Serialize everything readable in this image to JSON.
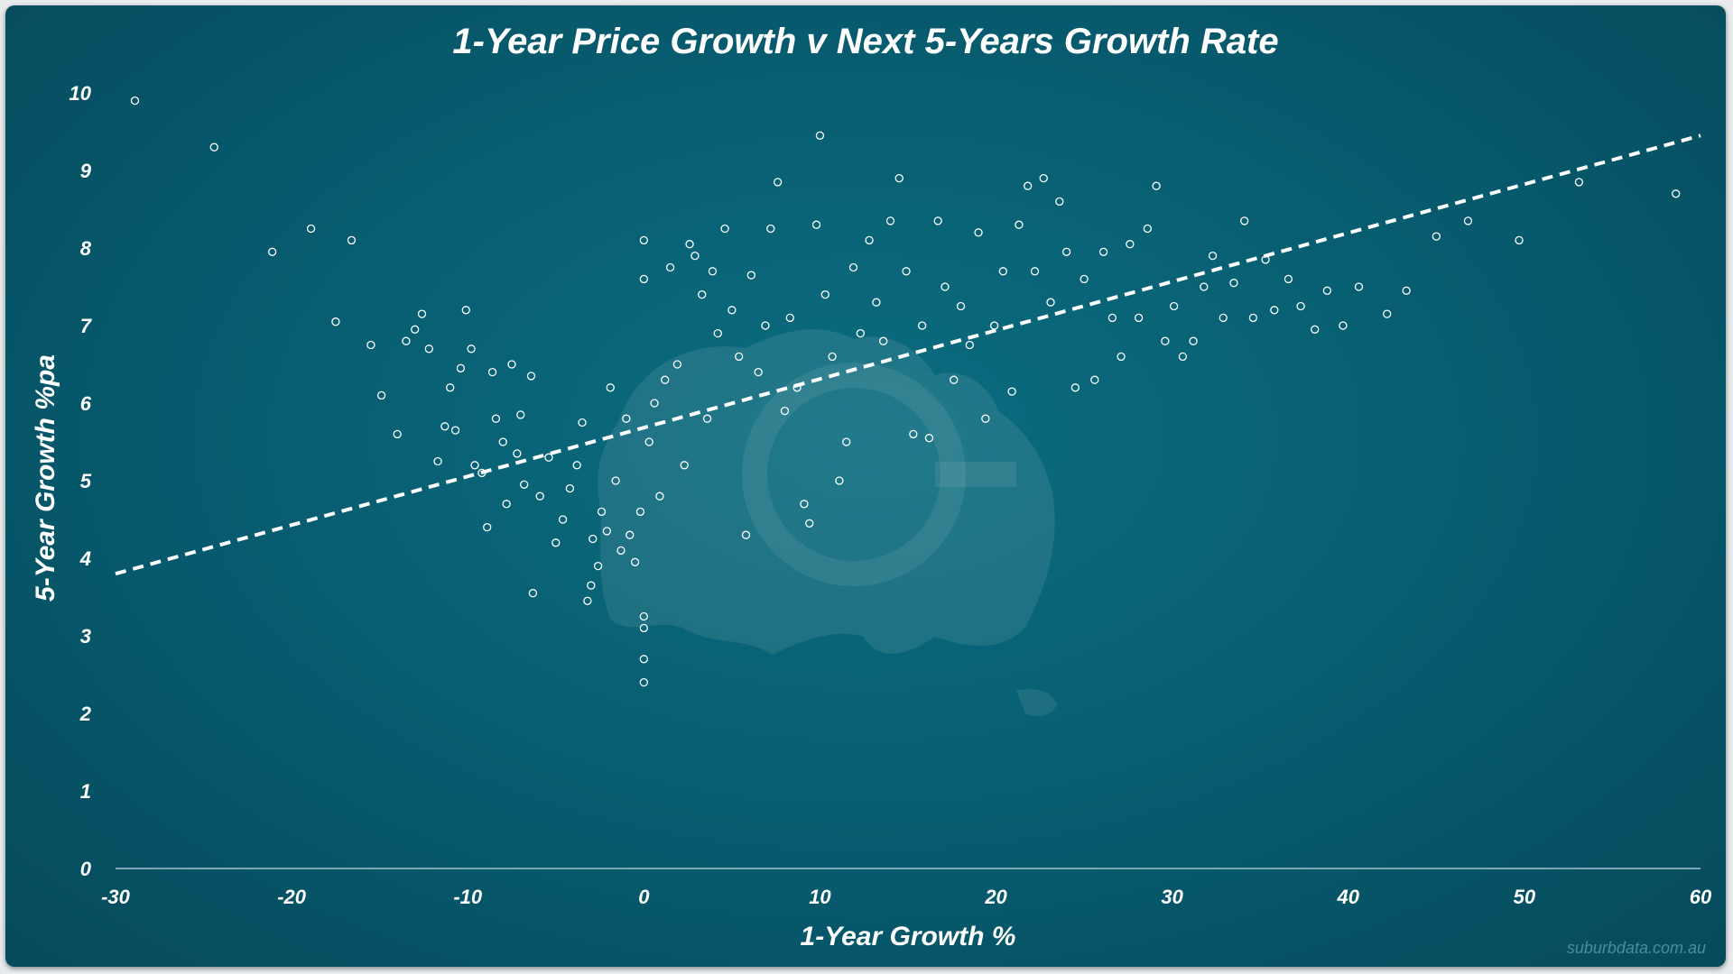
{
  "chart_data": {
    "type": "scatter",
    "title": "1-Year Price Growth v Next 5-Years Growth Rate",
    "xlabel": "1-Year Growth %",
    "ylabel": "5-Year Growth %pa",
    "xlim": [
      -30,
      60
    ],
    "ylim": [
      0,
      10
    ],
    "x_ticks": [
      "-30",
      "-20",
      "-10",
      "0",
      "10",
      "20",
      "30",
      "40",
      "50",
      "60"
    ],
    "y_ticks": [
      "0",
      "1",
      "2",
      "3",
      "4",
      "5",
      "6",
      "7",
      "8",
      "9",
      "10"
    ],
    "grid": false,
    "legend": "none",
    "trendline": {
      "style": "dashed",
      "x": [
        -30,
        60
      ],
      "y": [
        3.8,
        9.45
      ]
    },
    "series": [
      {
        "points": [
          [
            -28.9,
            9.9
          ],
          [
            -24.4,
            9.3
          ],
          [
            -21.1,
            7.95
          ],
          [
            -18.9,
            8.25
          ],
          [
            -16.6,
            8.1
          ],
          [
            -17.5,
            7.05
          ],
          [
            -15.5,
            6.75
          ],
          [
            -14.9,
            6.1
          ],
          [
            -14.0,
            5.6
          ],
          [
            -13.5,
            6.8
          ],
          [
            -13.0,
            6.95
          ],
          [
            -12.6,
            7.15
          ],
          [
            -12.2,
            6.7
          ],
          [
            -11.7,
            5.25
          ],
          [
            -11.3,
            5.7
          ],
          [
            -11.0,
            6.2
          ],
          [
            -10.7,
            5.65
          ],
          [
            -10.4,
            6.45
          ],
          [
            -10.1,
            7.2
          ],
          [
            -9.8,
            6.7
          ],
          [
            -9.6,
            5.2
          ],
          [
            -9.2,
            5.1
          ],
          [
            -8.9,
            4.4
          ],
          [
            -8.6,
            6.4
          ],
          [
            -8.4,
            5.8
          ],
          [
            -8.0,
            5.5
          ],
          [
            -7.8,
            4.7
          ],
          [
            -7.5,
            6.5
          ],
          [
            -7.2,
            5.35
          ],
          [
            -7.0,
            5.85
          ],
          [
            -6.8,
            4.95
          ],
          [
            -6.4,
            6.35
          ],
          [
            -6.3,
            3.55
          ],
          [
            -5.9,
            4.8
          ],
          [
            -5.4,
            5.3
          ],
          [
            -5.0,
            4.2
          ],
          [
            -4.6,
            4.5
          ],
          [
            -4.2,
            4.9
          ],
          [
            -3.8,
            5.2
          ],
          [
            -3.5,
            5.75
          ],
          [
            -3.2,
            3.45
          ],
          [
            -3.0,
            3.65
          ],
          [
            -2.9,
            4.25
          ],
          [
            -2.6,
            3.9
          ],
          [
            -2.4,
            4.6
          ],
          [
            -2.1,
            4.35
          ],
          [
            -1.9,
            6.2
          ],
          [
            -1.6,
            5.0
          ],
          [
            -1.3,
            4.1
          ],
          [
            -1.0,
            5.8
          ],
          [
            -0.8,
            4.3
          ],
          [
            -0.5,
            3.95
          ],
          [
            -0.2,
            4.6
          ],
          [
            0.0,
            3.25
          ],
          [
            0.0,
            3.1
          ],
          [
            0.0,
            2.7
          ],
          [
            0.0,
            2.4
          ],
          [
            0.0,
            8.1
          ],
          [
            0.0,
            7.6
          ],
          [
            0.3,
            5.5
          ],
          [
            0.6,
            6.0
          ],
          [
            0.9,
            4.8
          ],
          [
            1.2,
            6.3
          ],
          [
            1.5,
            7.75
          ],
          [
            1.9,
            6.5
          ],
          [
            2.3,
            5.2
          ],
          [
            2.6,
            8.05
          ],
          [
            2.9,
            7.9
          ],
          [
            3.3,
            7.4
          ],
          [
            3.6,
            5.8
          ],
          [
            3.9,
            7.7
          ],
          [
            4.2,
            6.9
          ],
          [
            4.6,
            8.25
          ],
          [
            5.0,
            7.2
          ],
          [
            5.4,
            6.6
          ],
          [
            5.8,
            4.3
          ],
          [
            6.1,
            7.65
          ],
          [
            6.5,
            6.4
          ],
          [
            6.9,
            7.0
          ],
          [
            7.2,
            8.25
          ],
          [
            7.6,
            8.85
          ],
          [
            8.0,
            5.9
          ],
          [
            8.3,
            7.1
          ],
          [
            8.7,
            6.2
          ],
          [
            9.1,
            4.7
          ],
          [
            9.4,
            4.45
          ],
          [
            9.8,
            8.3
          ],
          [
            10.0,
            9.45
          ],
          [
            10.3,
            7.4
          ],
          [
            10.7,
            6.6
          ],
          [
            11.1,
            5.0
          ],
          [
            11.5,
            5.5
          ],
          [
            11.9,
            7.75
          ],
          [
            12.3,
            6.9
          ],
          [
            12.8,
            8.1
          ],
          [
            13.2,
            7.3
          ],
          [
            13.6,
            6.8
          ],
          [
            14.0,
            8.35
          ],
          [
            14.5,
            8.9
          ],
          [
            14.9,
            7.7
          ],
          [
            15.3,
            5.6
          ],
          [
            15.8,
            7.0
          ],
          [
            16.2,
            5.55
          ],
          [
            16.7,
            8.35
          ],
          [
            17.1,
            7.5
          ],
          [
            17.6,
            6.3
          ],
          [
            18.0,
            7.25
          ],
          [
            18.5,
            6.75
          ],
          [
            19.0,
            8.2
          ],
          [
            19.4,
            5.8
          ],
          [
            19.9,
            7.0
          ],
          [
            20.4,
            7.7
          ],
          [
            20.9,
            6.15
          ],
          [
            21.3,
            8.3
          ],
          [
            21.8,
            8.8
          ],
          [
            22.2,
            7.7
          ],
          [
            22.7,
            8.9
          ],
          [
            23.1,
            7.3
          ],
          [
            23.6,
            8.6
          ],
          [
            24.0,
            7.95
          ],
          [
            24.5,
            6.2
          ],
          [
            25.0,
            7.6
          ],
          [
            25.6,
            6.3
          ],
          [
            26.1,
            7.95
          ],
          [
            26.6,
            7.1
          ],
          [
            27.1,
            6.6
          ],
          [
            27.6,
            8.05
          ],
          [
            28.1,
            7.1
          ],
          [
            28.6,
            8.25
          ],
          [
            29.1,
            8.8
          ],
          [
            29.6,
            6.8
          ],
          [
            30.1,
            7.25
          ],
          [
            30.6,
            6.6
          ],
          [
            31.2,
            6.8
          ],
          [
            31.8,
            7.5
          ],
          [
            32.3,
            7.9
          ],
          [
            32.9,
            7.1
          ],
          [
            33.5,
            7.55
          ],
          [
            34.1,
            8.35
          ],
          [
            34.6,
            7.1
          ],
          [
            35.3,
            7.85
          ],
          [
            35.8,
            7.2
          ],
          [
            36.6,
            7.6
          ],
          [
            37.3,
            7.25
          ],
          [
            38.1,
            6.95
          ],
          [
            38.8,
            7.45
          ],
          [
            39.7,
            7.0
          ],
          [
            40.6,
            7.5
          ],
          [
            42.2,
            7.15
          ],
          [
            43.3,
            7.45
          ],
          [
            45.0,
            8.15
          ],
          [
            46.8,
            8.35
          ],
          [
            49.7,
            8.1
          ],
          [
            53.1,
            8.85
          ],
          [
            58.6,
            8.7
          ]
        ]
      }
    ],
    "watermark": "suburbdata.com.au"
  }
}
